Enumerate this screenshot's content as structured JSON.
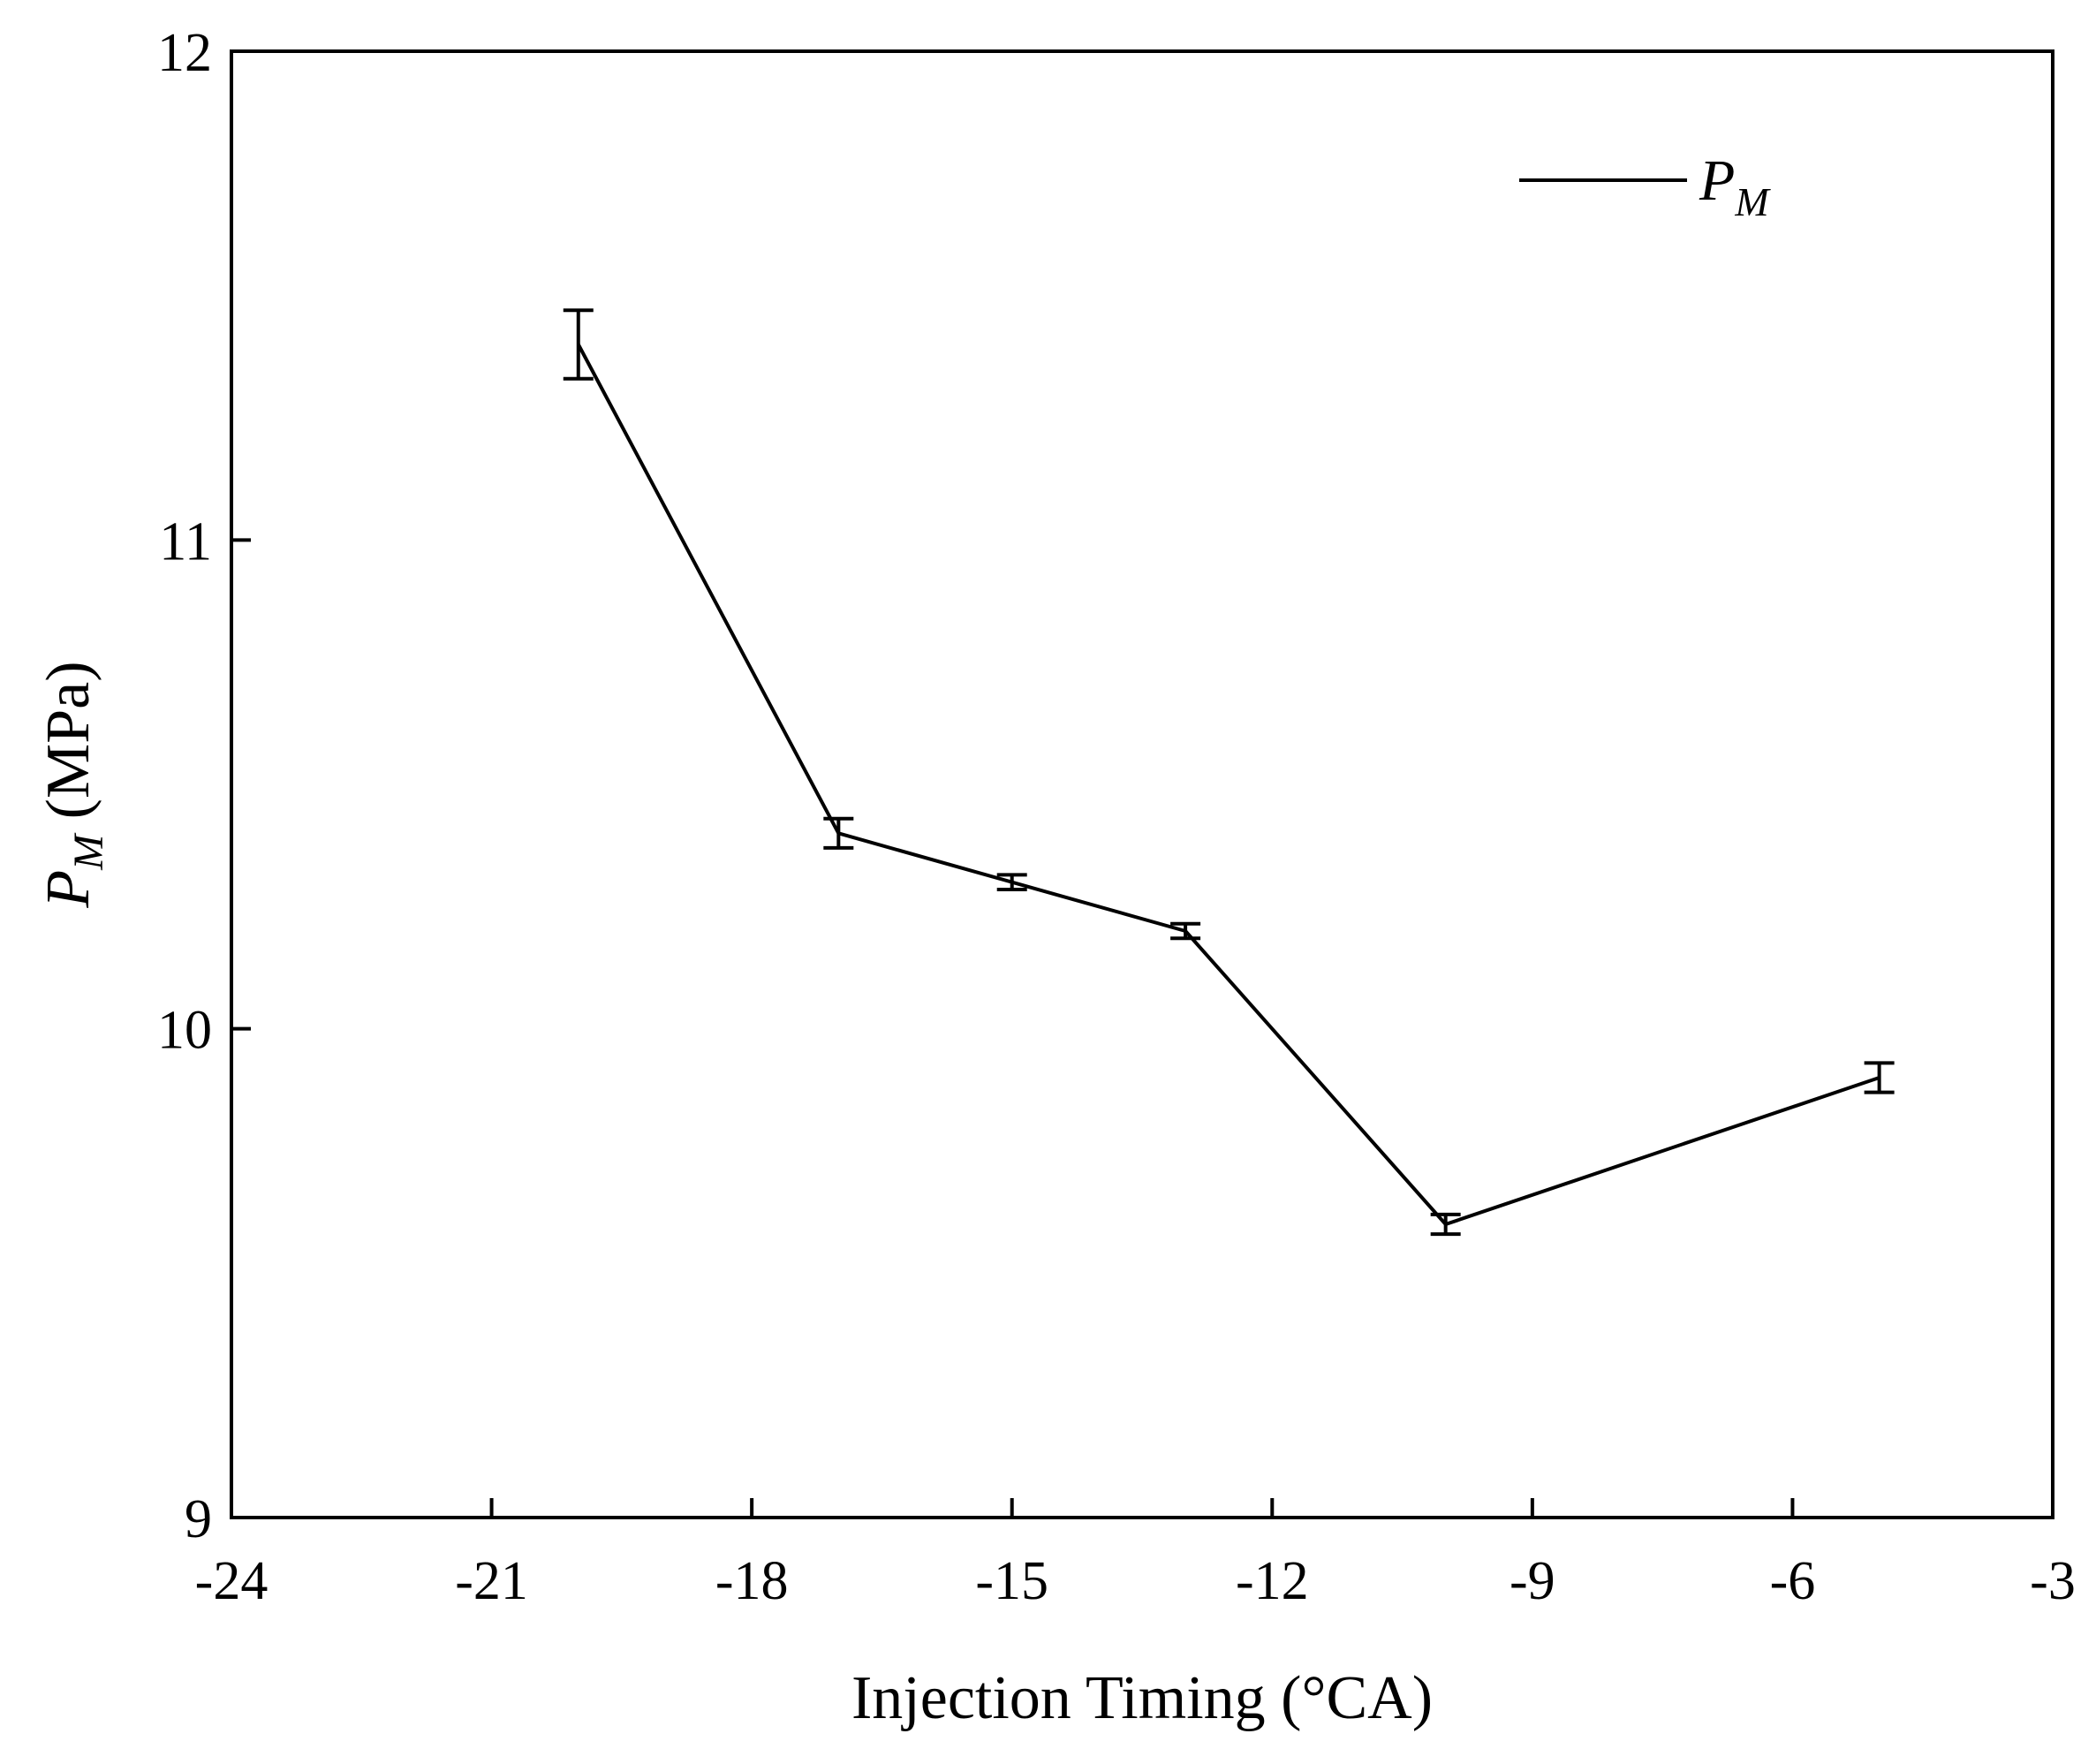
{
  "chart_data": {
    "type": "line",
    "title": "",
    "xlabel": "Injection Timing (°CA)",
    "ylabel": {
      "main": "P",
      "sub": "M",
      "unit": " (MPa)"
    },
    "xlim": [
      -24,
      -3
    ],
    "ylim": [
      9,
      12
    ],
    "xticks": [
      -24,
      -21,
      -18,
      -15,
      -12,
      -9,
      -6,
      -3
    ],
    "yticks": [
      9,
      10,
      11,
      12
    ],
    "xtick_labels": [
      "-24",
      "-21",
      "-18",
      "-15",
      "-12",
      "-9",
      "-6",
      "-3"
    ],
    "ytick_labels": [
      "9",
      "10",
      "11",
      "12"
    ],
    "grid": false,
    "legend": {
      "position": "top-right",
      "entries": [
        {
          "main": "P",
          "sub": "M"
        }
      ]
    },
    "series": [
      {
        "name": "P_M",
        "color": "#000000",
        "x": [
          -20,
          -17,
          -15,
          -13,
          -10,
          -5
        ],
        "y": [
          11.4,
          10.4,
          10.3,
          10.2,
          9.6,
          9.9
        ],
        "error": [
          0.07,
          0.03,
          0.015,
          0.015,
          0.02,
          0.03
        ]
      }
    ]
  }
}
